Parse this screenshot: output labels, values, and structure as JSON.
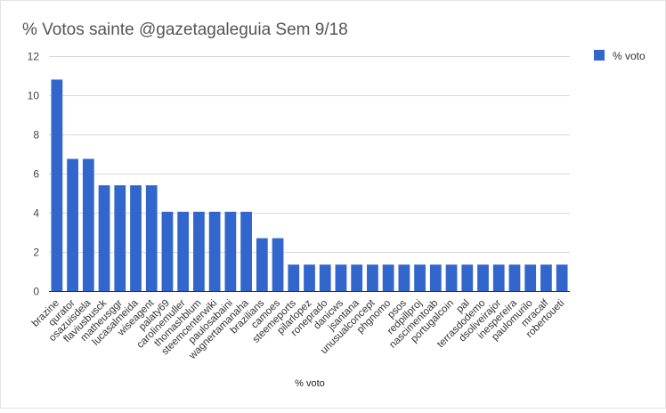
{
  "chart_data": {
    "type": "bar",
    "title": "% Votos sainte @gazetagaleguia Sem 9/18",
    "xlabel": "% voto",
    "ylabel": "",
    "ylim": [
      0,
      12
    ],
    "yticks": [
      0,
      2,
      4,
      6,
      8,
      10,
      12
    ],
    "grid": true,
    "legend_position": "top-right",
    "bar_color": "#3366cc",
    "categories": [
      "brazine",
      "qurator",
      "osazuisdela",
      "flaviusbusck",
      "matheusggr",
      "lucasalmeida",
      "wiseagent",
      "palaty69",
      "carolinemuller",
      "thomashblum",
      "steemcenterwiki",
      "paulosabaini",
      "wagnertamanaha",
      "brazilians",
      "camoes",
      "steemeports",
      "pilarlopez",
      "roneprado",
      "danicws",
      "jsantana",
      "unusualconcept",
      "phgnomo",
      "psos",
      "redpillproj",
      "nascimentoab",
      "portugalcoin",
      "pal",
      "terrasdodemo",
      "dsoliveirajor",
      "inespereira",
      "paulomurilo",
      "mracalf",
      "robertoueti"
    ],
    "series": [
      {
        "name": "% voto",
        "values": [
          10.8,
          6.75,
          6.75,
          5.4,
          5.4,
          5.4,
          5.4,
          4.05,
          4.05,
          4.05,
          4.05,
          4.05,
          4.05,
          2.7,
          2.7,
          1.35,
          1.35,
          1.35,
          1.35,
          1.35,
          1.35,
          1.35,
          1.35,
          1.35,
          1.35,
          1.35,
          1.35,
          1.35,
          1.35,
          1.35,
          1.35,
          1.35,
          1.35
        ]
      }
    ]
  }
}
